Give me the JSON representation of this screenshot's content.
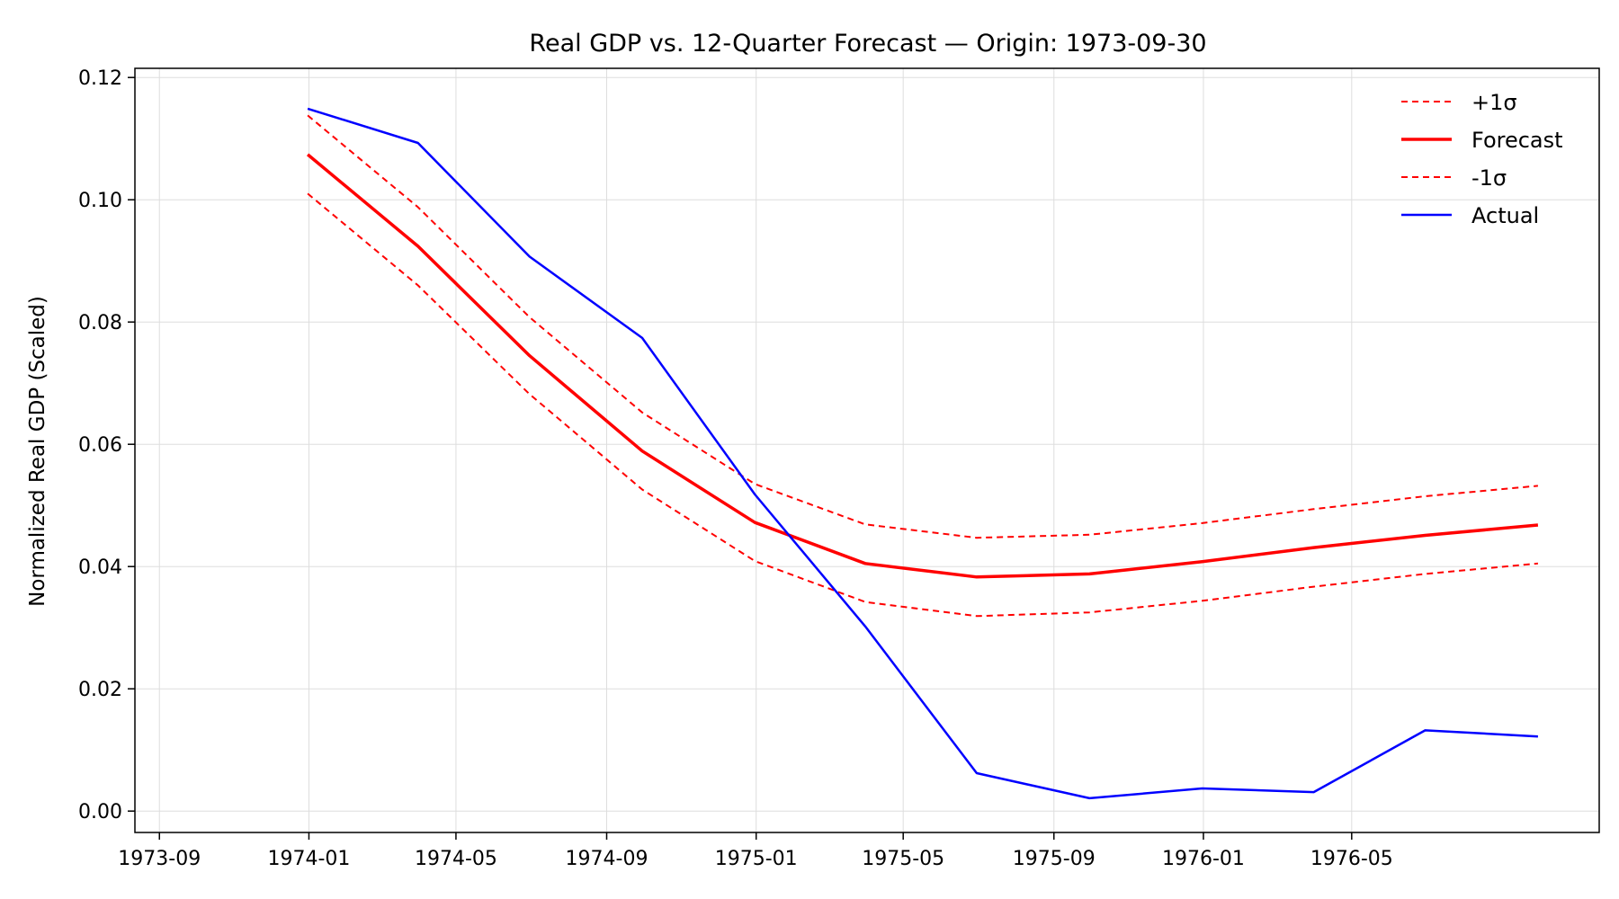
{
  "chart_data": {
    "type": "line",
    "title": "Real GDP vs. 12-Quarter Forecast — Origin: 1973-09-30",
    "xlabel": "",
    "ylabel": "Normalized Real GDP (Scaled)",
    "x": [
      "1973-12-31",
      "1974-03-31",
      "1974-06-30",
      "1974-09-30",
      "1974-12-31",
      "1975-03-31",
      "1975-06-30",
      "1975-09-30",
      "1975-12-31",
      "1976-03-31",
      "1976-06-30",
      "1976-09-30"
    ],
    "xlim": [
      "1973-08-12",
      "1976-11-19"
    ],
    "ylim": [
      -0.0035,
      0.1215
    ],
    "x_ticks": [
      "1973-09",
      "1974-01",
      "1974-05",
      "1974-09",
      "1975-01",
      "1975-05",
      "1975-09",
      "1976-01",
      "1976-05"
    ],
    "y_ticks": [
      "0.00",
      "0.02",
      "0.04",
      "0.06",
      "0.08",
      "0.10",
      "0.12"
    ],
    "grid": true,
    "legend_position": "top-right",
    "series": [
      {
        "name": "+1σ",
        "color": "#ff0000",
        "style": "dashed",
        "width": 2,
        "values": [
          0.1138,
          0.0988,
          0.0808,
          0.0652,
          0.0535,
          0.0469,
          0.0447,
          0.0452,
          0.0471,
          0.0494,
          0.0515,
          0.0532
        ]
      },
      {
        "name": "Forecast",
        "color": "#ff0000",
        "style": "solid",
        "width": 3.5,
        "values": [
          0.1074,
          0.0924,
          0.0745,
          0.0589,
          0.0472,
          0.0405,
          0.0383,
          0.0388,
          0.0408,
          0.0431,
          0.0451,
          0.0468
        ]
      },
      {
        "name": "-1σ",
        "color": "#ff0000",
        "style": "dashed",
        "width": 2,
        "values": [
          0.101,
          0.086,
          0.0682,
          0.0526,
          0.0409,
          0.0342,
          0.0319,
          0.0325,
          0.0344,
          0.0367,
          0.0388,
          0.0405
        ]
      },
      {
        "name": "Actual",
        "color": "#0000ff",
        "style": "solid",
        "width": 2.5,
        "values": [
          0.1149,
          0.1093,
          0.0907,
          0.0774,
          0.0518,
          0.0302,
          0.0062,
          0.0021,
          0.0037,
          0.0031,
          0.0132,
          0.0122
        ]
      }
    ]
  }
}
